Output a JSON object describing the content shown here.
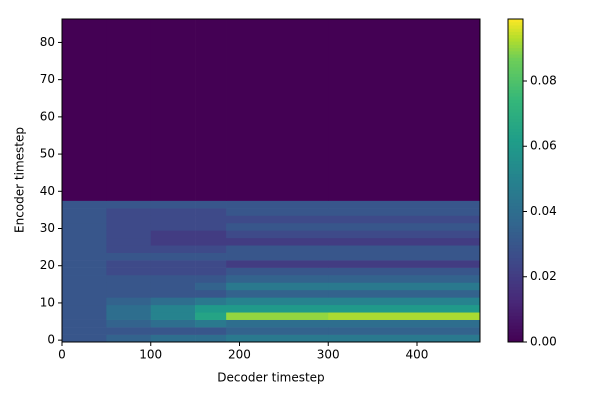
{
  "chart_data": {
    "type": "heatmap",
    "x_label": "Decoder timestep",
    "y_label": "Encoder timestep",
    "xbins": [
      0,
      50,
      100,
      150,
      185,
      300,
      471
    ],
    "ybins": [
      -0.5,
      1.5,
      3.5,
      5.5,
      7.5,
      9.5,
      11.5,
      13.5,
      15.5,
      17.5,
      19.5,
      21.5,
      23.5,
      25.5,
      27.5,
      29.5,
      31.5,
      33.5,
      35.5,
      37.5,
      86.3
    ],
    "values": [
      [
        0.03,
        0.035,
        0.04,
        0.04,
        0.045,
        0.045
      ],
      [
        0.03,
        0.03,
        0.03,
        0.03,
        0.035,
        0.035
      ],
      [
        0.03,
        0.035,
        0.04,
        0.045,
        0.04,
        0.04
      ],
      [
        0.03,
        0.04,
        0.05,
        0.065,
        0.09,
        0.092
      ],
      [
        0.03,
        0.04,
        0.05,
        0.06,
        0.06,
        0.06
      ],
      [
        0.03,
        0.035,
        0.04,
        0.045,
        0.05,
        0.05
      ],
      [
        0.03,
        0.03,
        0.03,
        0.03,
        0.035,
        0.035
      ],
      [
        0.03,
        0.03,
        0.03,
        0.035,
        0.045,
        0.045
      ],
      [
        0.03,
        0.03,
        0.03,
        0.03,
        0.035,
        0.035
      ],
      [
        0.03,
        0.025,
        0.025,
        0.025,
        0.03,
        0.03
      ],
      [
        0.03,
        0.025,
        0.025,
        0.025,
        0.02,
        0.02
      ],
      [
        0.03,
        0.03,
        0.03,
        0.03,
        0.03,
        0.03
      ],
      [
        0.03,
        0.025,
        0.025,
        0.025,
        0.03,
        0.03
      ],
      [
        0.03,
        0.025,
        0.02,
        0.02,
        0.02,
        0.02
      ],
      [
        0.03,
        0.025,
        0.02,
        0.02,
        0.025,
        0.025
      ],
      [
        0.03,
        0.025,
        0.025,
        0.025,
        0.03,
        0.03
      ],
      [
        0.03,
        0.025,
        0.025,
        0.025,
        0.025,
        0.025
      ],
      [
        0.03,
        0.025,
        0.025,
        0.025,
        0.03,
        0.03
      ],
      [
        0.03,
        0.03,
        0.03,
        0.03,
        0.03,
        0.03
      ],
      [
        0,
        0,
        0,
        0,
        0,
        0
      ]
    ],
    "xlim": [
      0,
      471
    ],
    "ylim": [
      -0.5,
      86.3
    ],
    "xticks": [
      0,
      100,
      200,
      300,
      400
    ],
    "yticks": [
      0,
      10,
      20,
      30,
      40,
      50,
      60,
      70,
      80
    ],
    "clim": [
      0,
      0.099
    ],
    "cticks": [
      {
        "value": 0,
        "label": "0.00"
      },
      {
        "value": 0.02,
        "label": "0.02"
      },
      {
        "value": 0.04,
        "label": "0.04"
      },
      {
        "value": 0.06,
        "label": "0.06"
      },
      {
        "value": 0.08,
        "label": "0.08"
      }
    ],
    "colormap": "viridis"
  }
}
